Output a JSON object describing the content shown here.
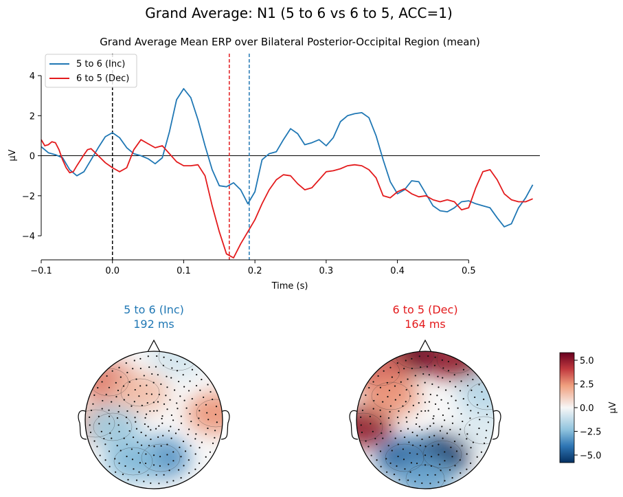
{
  "figure": {
    "suptitle": "Grand Average: N1 (5 to 6 vs 6 to 5, ACC=1)"
  },
  "colors": {
    "inc": "#1f77b4",
    "dec": "#e31a1c",
    "axis": "#000000"
  },
  "chart_data": [
    {
      "type": "line",
      "title": "Grand Average Mean ERP over Bilateral Posterior-Occipital Region (mean)",
      "xlabel": "Time (s)",
      "ylabel": "µV",
      "xlim": [
        -0.1,
        0.6
      ],
      "ylim": [
        -5.2,
        5.1
      ],
      "xticks": [
        -0.1,
        0.0,
        0.1,
        0.2,
        0.3,
        0.4,
        0.5
      ],
      "xtick_labels": [
        "−0.1",
        "0.0",
        "0.1",
        "0.2",
        "0.3",
        "0.4",
        "0.5"
      ],
      "yticks": [
        4,
        2,
        0,
        -2,
        -4
      ],
      "ytick_labels": [
        "4",
        "2",
        "0",
        "−2",
        "−4"
      ],
      "legend_position": "top-left",
      "vlines": [
        {
          "x": 0.0,
          "color": "#000000",
          "style": "dashed"
        },
        {
          "x": 0.164,
          "color": "#e31a1c",
          "style": "dashed"
        },
        {
          "x": 0.192,
          "color": "#1f77b4",
          "style": "dashed"
        }
      ],
      "hline": 0,
      "series": [
        {
          "name": "5 to 6 (Inc)",
          "color": "#1f77b4",
          "points": [
            [
              -0.1,
              0.45
            ],
            [
              -0.09,
              0.15
            ],
            [
              -0.08,
              0.05
            ],
            [
              -0.07,
              -0.1
            ],
            [
              -0.06,
              -0.7
            ],
            [
              -0.05,
              -1.0
            ],
            [
              -0.04,
              -0.8
            ],
            [
              -0.03,
              -0.2
            ],
            [
              -0.02,
              0.4
            ],
            [
              -0.01,
              0.95
            ],
            [
              0.0,
              1.15
            ],
            [
              0.01,
              0.9
            ],
            [
              0.02,
              0.4
            ],
            [
              0.03,
              0.1
            ],
            [
              0.04,
              0.0
            ],
            [
              0.05,
              -0.15
            ],
            [
              0.06,
              -0.4
            ],
            [
              0.07,
              -0.1
            ],
            [
              0.08,
              1.2
            ],
            [
              0.09,
              2.8
            ],
            [
              0.1,
              3.35
            ],
            [
              0.11,
              2.9
            ],
            [
              0.12,
              1.8
            ],
            [
              0.13,
              0.5
            ],
            [
              0.14,
              -0.7
            ],
            [
              0.15,
              -1.5
            ],
            [
              0.16,
              -1.55
            ],
            [
              0.17,
              -1.35
            ],
            [
              0.18,
              -1.7
            ],
            [
              0.19,
              -2.4
            ],
            [
              0.2,
              -1.8
            ],
            [
              0.21,
              -0.2
            ],
            [
              0.22,
              0.1
            ],
            [
              0.23,
              0.2
            ],
            [
              0.24,
              0.8
            ],
            [
              0.25,
              1.35
            ],
            [
              0.26,
              1.1
            ],
            [
              0.27,
              0.55
            ],
            [
              0.28,
              0.65
            ],
            [
              0.29,
              0.8
            ],
            [
              0.3,
              0.5
            ],
            [
              0.31,
              0.9
            ],
            [
              0.32,
              1.7
            ],
            [
              0.33,
              2.0
            ],
            [
              0.34,
              2.1
            ],
            [
              0.35,
              2.15
            ],
            [
              0.36,
              1.9
            ],
            [
              0.37,
              1.0
            ],
            [
              0.38,
              -0.2
            ],
            [
              0.39,
              -1.3
            ],
            [
              0.4,
              -1.9
            ],
            [
              0.41,
              -1.7
            ],
            [
              0.42,
              -1.25
            ],
            [
              0.43,
              -1.3
            ],
            [
              0.44,
              -1.9
            ],
            [
              0.45,
              -2.5
            ],
            [
              0.46,
              -2.75
            ],
            [
              0.47,
              -2.8
            ],
            [
              0.48,
              -2.6
            ],
            [
              0.49,
              -2.3
            ],
            [
              0.5,
              -2.25
            ],
            [
              0.51,
              -2.4
            ],
            [
              0.52,
              -2.5
            ],
            [
              0.53,
              -2.6
            ],
            [
              0.54,
              -3.1
            ],
            [
              0.55,
              -3.55
            ],
            [
              0.56,
              -3.4
            ],
            [
              0.57,
              -2.6
            ],
            [
              0.58,
              -2.1
            ],
            [
              0.59,
              -1.45
            ]
          ]
        },
        {
          "name": "6 to 5 (Dec)",
          "color": "#e31a1c",
          "points": [
            [
              -0.1,
              0.8
            ],
            [
              -0.095,
              0.5
            ],
            [
              -0.09,
              0.55
            ],
            [
              -0.085,
              0.7
            ],
            [
              -0.08,
              0.65
            ],
            [
              -0.075,
              0.3
            ],
            [
              -0.07,
              -0.2
            ],
            [
              -0.065,
              -0.6
            ],
            [
              -0.06,
              -0.85
            ],
            [
              -0.055,
              -0.8
            ],
            [
              -0.05,
              -0.5
            ],
            [
              -0.04,
              0.05
            ],
            [
              -0.035,
              0.3
            ],
            [
              -0.03,
              0.35
            ],
            [
              -0.02,
              0.0
            ],
            [
              -0.01,
              -0.35
            ],
            [
              0.0,
              -0.6
            ],
            [
              0.01,
              -0.8
            ],
            [
              0.02,
              -0.6
            ],
            [
              0.03,
              0.3
            ],
            [
              0.04,
              0.8
            ],
            [
              0.05,
              0.6
            ],
            [
              0.06,
              0.4
            ],
            [
              0.07,
              0.5
            ],
            [
              0.08,
              0.1
            ],
            [
              0.09,
              -0.3
            ],
            [
              0.1,
              -0.5
            ],
            [
              0.11,
              -0.5
            ],
            [
              0.12,
              -0.45
            ],
            [
              0.13,
              -1.0
            ],
            [
              0.14,
              -2.5
            ],
            [
              0.15,
              -3.8
            ],
            [
              0.16,
              -4.9
            ],
            [
              0.17,
              -5.1
            ],
            [
              0.18,
              -4.4
            ],
            [
              0.19,
              -3.8
            ],
            [
              0.2,
              -3.2
            ],
            [
              0.21,
              -2.4
            ],
            [
              0.22,
              -1.7
            ],
            [
              0.23,
              -1.2
            ],
            [
              0.24,
              -0.95
            ],
            [
              0.25,
              -1.0
            ],
            [
              0.26,
              -1.4
            ],
            [
              0.27,
              -1.7
            ],
            [
              0.28,
              -1.6
            ],
            [
              0.29,
              -1.2
            ],
            [
              0.3,
              -0.8
            ],
            [
              0.31,
              -0.75
            ],
            [
              0.32,
              -0.65
            ],
            [
              0.33,
              -0.5
            ],
            [
              0.34,
              -0.45
            ],
            [
              0.35,
              -0.5
            ],
            [
              0.36,
              -0.7
            ],
            [
              0.37,
              -1.1
            ],
            [
              0.38,
              -2.0
            ],
            [
              0.39,
              -2.1
            ],
            [
              0.4,
              -1.8
            ],
            [
              0.41,
              -1.65
            ],
            [
              0.42,
              -1.9
            ],
            [
              0.43,
              -2.05
            ],
            [
              0.44,
              -2.0
            ],
            [
              0.45,
              -2.2
            ],
            [
              0.46,
              -2.3
            ],
            [
              0.47,
              -2.2
            ],
            [
              0.48,
              -2.3
            ],
            [
              0.49,
              -2.7
            ],
            [
              0.5,
              -2.6
            ],
            [
              0.51,
              -1.6
            ],
            [
              0.52,
              -0.8
            ],
            [
              0.53,
              -0.7
            ],
            [
              0.54,
              -1.2
            ],
            [
              0.55,
              -1.9
            ],
            [
              0.56,
              -2.2
            ],
            [
              0.57,
              -2.3
            ],
            [
              0.58,
              -2.3
            ],
            [
              0.59,
              -2.15
            ]
          ]
        }
      ]
    },
    {
      "type": "heatmap",
      "title_line1": "5 to 6 (Inc)",
      "title_line2": "192 ms",
      "color": "#1f77b4",
      "blobs": [
        {
          "x": -0.65,
          "y": 0.55,
          "v": 3.0
        },
        {
          "x": -0.2,
          "y": 0.4,
          "v": 1.5
        },
        {
          "x": 0.9,
          "y": 0.1,
          "v": 2.5
        },
        {
          "x": -0.85,
          "y": -0.05,
          "v": 2.0
        },
        {
          "x": 0.35,
          "y": 0.92,
          "v": -0.8
        },
        {
          "x": -0.6,
          "y": -0.1,
          "v": -2.0
        },
        {
          "x": 0.1,
          "y": -0.55,
          "v": -3.5
        },
        {
          "x": -0.3,
          "y": -0.6,
          "v": -2.5
        }
      ]
    },
    {
      "type": "heatmap",
      "title_line1": "6 to 5 (Dec)",
      "title_line2": "164 ms",
      "color": "#e31a1c",
      "blobs": [
        {
          "x": -0.15,
          "y": 0.95,
          "v": 6.0
        },
        {
          "x": 0.45,
          "y": 0.88,
          "v": 5.0
        },
        {
          "x": -0.65,
          "y": 0.7,
          "v": 3.5
        },
        {
          "x": -0.9,
          "y": -0.1,
          "v": 5.0
        },
        {
          "x": -0.5,
          "y": 0.35,
          "v": 2.5
        },
        {
          "x": 0.9,
          "y": 0.35,
          "v": -1.5
        },
        {
          "x": 0.85,
          "y": -0.15,
          "v": -0.6
        },
        {
          "x": 0.25,
          "y": -0.5,
          "v": -5.5
        },
        {
          "x": -0.3,
          "y": -0.55,
          "v": -4.5
        },
        {
          "x": 0.0,
          "y": -0.85,
          "v": -3.0
        }
      ]
    },
    {
      "type": "colorbar",
      "label": "µV",
      "vmin": -5.8,
      "vmax": 5.8,
      "ticks": [
        5.0,
        2.5,
        0.0,
        -2.5,
        -5.0
      ],
      "tick_labels": [
        "5.0",
        "2.5",
        "0.0",
        "−2.5",
        "−5.0"
      ]
    }
  ]
}
